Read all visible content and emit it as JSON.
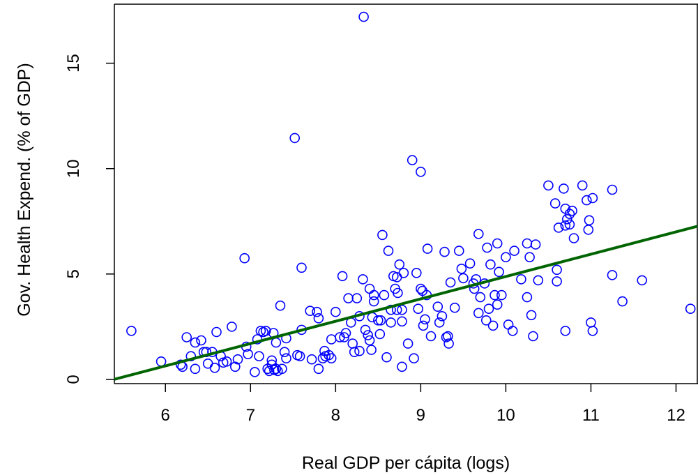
{
  "chart_data": {
    "type": "scatter",
    "title": "",
    "xlabel": "Real GDP per cápita (logs)",
    "ylabel": "Gov. Health Expend. (% of GDP)",
    "xlim": [
      5.4,
      12.25
    ],
    "ylim": [
      -0.2,
      17.8
    ],
    "x_ticks": [
      6,
      7,
      8,
      9,
      10,
      11,
      12
    ],
    "y_ticks": [
      0,
      5,
      10,
      15
    ],
    "grid": false,
    "legend": "none",
    "colors": {
      "points": "#0000ff",
      "fit_line": "#006400",
      "axes": "#000000"
    },
    "fit_line": {
      "intercept": -5.72,
      "slope": 1.06
    },
    "points": [
      [
        5.6,
        2.3
      ],
      [
        5.95,
        0.85
      ],
      [
        6.18,
        0.7
      ],
      [
        6.2,
        0.6
      ],
      [
        6.25,
        2.0
      ],
      [
        6.3,
        1.1
      ],
      [
        6.35,
        1.75
      ],
      [
        6.35,
        0.5
      ],
      [
        6.42,
        1.85
      ],
      [
        6.45,
        1.3
      ],
      [
        6.48,
        1.3
      ],
      [
        6.5,
        0.75
      ],
      [
        6.55,
        1.3
      ],
      [
        6.58,
        0.55
      ],
      [
        6.6,
        2.25
      ],
      [
        6.65,
        1.1
      ],
      [
        6.68,
        0.8
      ],
      [
        6.72,
        0.85
      ],
      [
        6.78,
        2.5
      ],
      [
        6.82,
        0.6
      ],
      [
        6.85,
        0.95
      ],
      [
        6.93,
        5.75
      ],
      [
        6.95,
        1.55
      ],
      [
        6.97,
        1.2
      ],
      [
        7.05,
        0.35
      ],
      [
        7.08,
        1.9
      ],
      [
        7.1,
        1.1
      ],
      [
        7.12,
        2.3
      ],
      [
        7.15,
        2.25
      ],
      [
        7.18,
        2.3
      ],
      [
        7.2,
        0.5
      ],
      [
        7.22,
        0.4
      ],
      [
        7.25,
        0.9
      ],
      [
        7.25,
        0.7
      ],
      [
        7.27,
        2.2
      ],
      [
        7.28,
        0.45
      ],
      [
        7.3,
        1.75
      ],
      [
        7.3,
        0.5
      ],
      [
        7.32,
        0.4
      ],
      [
        7.35,
        3.5
      ],
      [
        7.37,
        0.5
      ],
      [
        7.4,
        1.3
      ],
      [
        7.42,
        1.95
      ],
      [
        7.42,
        1.0
      ],
      [
        7.52,
        11.45
      ],
      [
        7.55,
        1.15
      ],
      [
        7.58,
        1.1
      ],
      [
        7.6,
        5.3
      ],
      [
        7.6,
        2.35
      ],
      [
        7.7,
        3.25
      ],
      [
        7.72,
        0.95
      ],
      [
        7.78,
        3.2
      ],
      [
        7.8,
        2.9
      ],
      [
        7.8,
        0.5
      ],
      [
        7.85,
        1.0
      ],
      [
        7.87,
        1.35
      ],
      [
        7.88,
        1.1
      ],
      [
        7.92,
        1.15
      ],
      [
        7.95,
        1.0
      ],
      [
        7.95,
        1.9
      ],
      [
        8.0,
        3.2
      ],
      [
        8.05,
        2.0
      ],
      [
        8.08,
        4.9
      ],
      [
        8.1,
        2.0
      ],
      [
        8.12,
        2.2
      ],
      [
        8.15,
        3.85
      ],
      [
        8.18,
        2.7
      ],
      [
        8.2,
        1.7
      ],
      [
        8.22,
        1.3
      ],
      [
        8.25,
        3.85
      ],
      [
        8.28,
        3.0
      ],
      [
        8.28,
        1.35
      ],
      [
        8.32,
        4.75
      ],
      [
        8.33,
        17.2
      ],
      [
        8.35,
        2.35
      ],
      [
        8.38,
        2.1
      ],
      [
        8.4,
        4.3
      ],
      [
        8.4,
        1.85
      ],
      [
        8.42,
        1.4
      ],
      [
        8.43,
        2.95
      ],
      [
        8.45,
        4.0
      ],
      [
        8.45,
        3.7
      ],
      [
        8.5,
        2.8
      ],
      [
        8.52,
        2.15
      ],
      [
        8.53,
        2.8
      ],
      [
        8.55,
        6.85
      ],
      [
        8.57,
        4.0
      ],
      [
        8.6,
        1.05
      ],
      [
        8.62,
        6.1
      ],
      [
        8.65,
        3.3
      ],
      [
        8.65,
        2.7
      ],
      [
        8.68,
        4.9
      ],
      [
        8.7,
        4.3
      ],
      [
        8.72,
        4.85
      ],
      [
        8.72,
        3.3
      ],
      [
        8.73,
        4.1
      ],
      [
        8.75,
        5.45
      ],
      [
        8.78,
        3.3
      ],
      [
        8.78,
        2.75
      ],
      [
        8.78,
        0.6
      ],
      [
        8.8,
        5.05
      ],
      [
        8.85,
        1.7
      ],
      [
        8.9,
        10.4
      ],
      [
        8.92,
        1.0
      ],
      [
        8.95,
        5.05
      ],
      [
        8.97,
        3.35
      ],
      [
        9.0,
        9.85
      ],
      [
        9.0,
        4.3
      ],
      [
        9.02,
        4.2
      ],
      [
        9.03,
        2.55
      ],
      [
        9.05,
        2.85
      ],
      [
        9.07,
        4.0
      ],
      [
        9.08,
        6.2
      ],
      [
        9.12,
        2.05
      ],
      [
        9.2,
        3.45
      ],
      [
        9.22,
        2.7
      ],
      [
        9.25,
        3.0
      ],
      [
        9.28,
        6.05
      ],
      [
        9.3,
        2.0
      ],
      [
        9.32,
        2.05
      ],
      [
        9.33,
        1.7
      ],
      [
        9.35,
        4.6
      ],
      [
        9.4,
        3.4
      ],
      [
        9.45,
        6.1
      ],
      [
        9.48,
        5.25
      ],
      [
        9.5,
        4.8
      ],
      [
        9.58,
        5.5
      ],
      [
        9.62,
        4.55
      ],
      [
        9.63,
        4.3
      ],
      [
        9.65,
        4.75
      ],
      [
        9.68,
        6.9
      ],
      [
        9.68,
        3.15
      ],
      [
        9.7,
        3.9
      ],
      [
        9.75,
        4.55
      ],
      [
        9.77,
        2.8
      ],
      [
        9.78,
        6.25
      ],
      [
        9.8,
        3.35
      ],
      [
        9.82,
        5.45
      ],
      [
        9.85,
        2.55
      ],
      [
        9.87,
        4.0
      ],
      [
        9.9,
        3.55
      ],
      [
        9.9,
        6.45
      ],
      [
        9.92,
        5.1
      ],
      [
        9.95,
        4.0
      ],
      [
        10.0,
        5.8
      ],
      [
        10.03,
        2.6
      ],
      [
        10.08,
        2.3
      ],
      [
        10.1,
        6.1
      ],
      [
        10.18,
        4.75
      ],
      [
        10.25,
        6.45
      ],
      [
        10.25,
        3.9
      ],
      [
        10.28,
        5.8
      ],
      [
        10.3,
        3.05
      ],
      [
        10.32,
        2.05
      ],
      [
        10.35,
        6.4
      ],
      [
        10.38,
        4.7
      ],
      [
        10.5,
        9.2
      ],
      [
        10.58,
        8.35
      ],
      [
        10.6,
        5.2
      ],
      [
        10.6,
        4.65
      ],
      [
        10.62,
        7.2
      ],
      [
        10.68,
        9.05
      ],
      [
        10.7,
        8.1
      ],
      [
        10.7,
        7.3
      ],
      [
        10.7,
        2.3
      ],
      [
        10.72,
        7.6
      ],
      [
        10.75,
        7.85
      ],
      [
        10.75,
        7.35
      ],
      [
        10.78,
        8.0
      ],
      [
        10.8,
        6.7
      ],
      [
        10.9,
        9.2
      ],
      [
        10.95,
        8.5
      ],
      [
        10.97,
        7.1
      ],
      [
        10.98,
        7.55
      ],
      [
        11.0,
        2.7
      ],
      [
        11.02,
        8.6
      ],
      [
        11.02,
        2.3
      ],
      [
        11.25,
        9.0
      ],
      [
        11.25,
        4.95
      ],
      [
        11.37,
        3.7
      ],
      [
        11.6,
        4.7
      ],
      [
        12.17,
        3.35
      ]
    ]
  }
}
